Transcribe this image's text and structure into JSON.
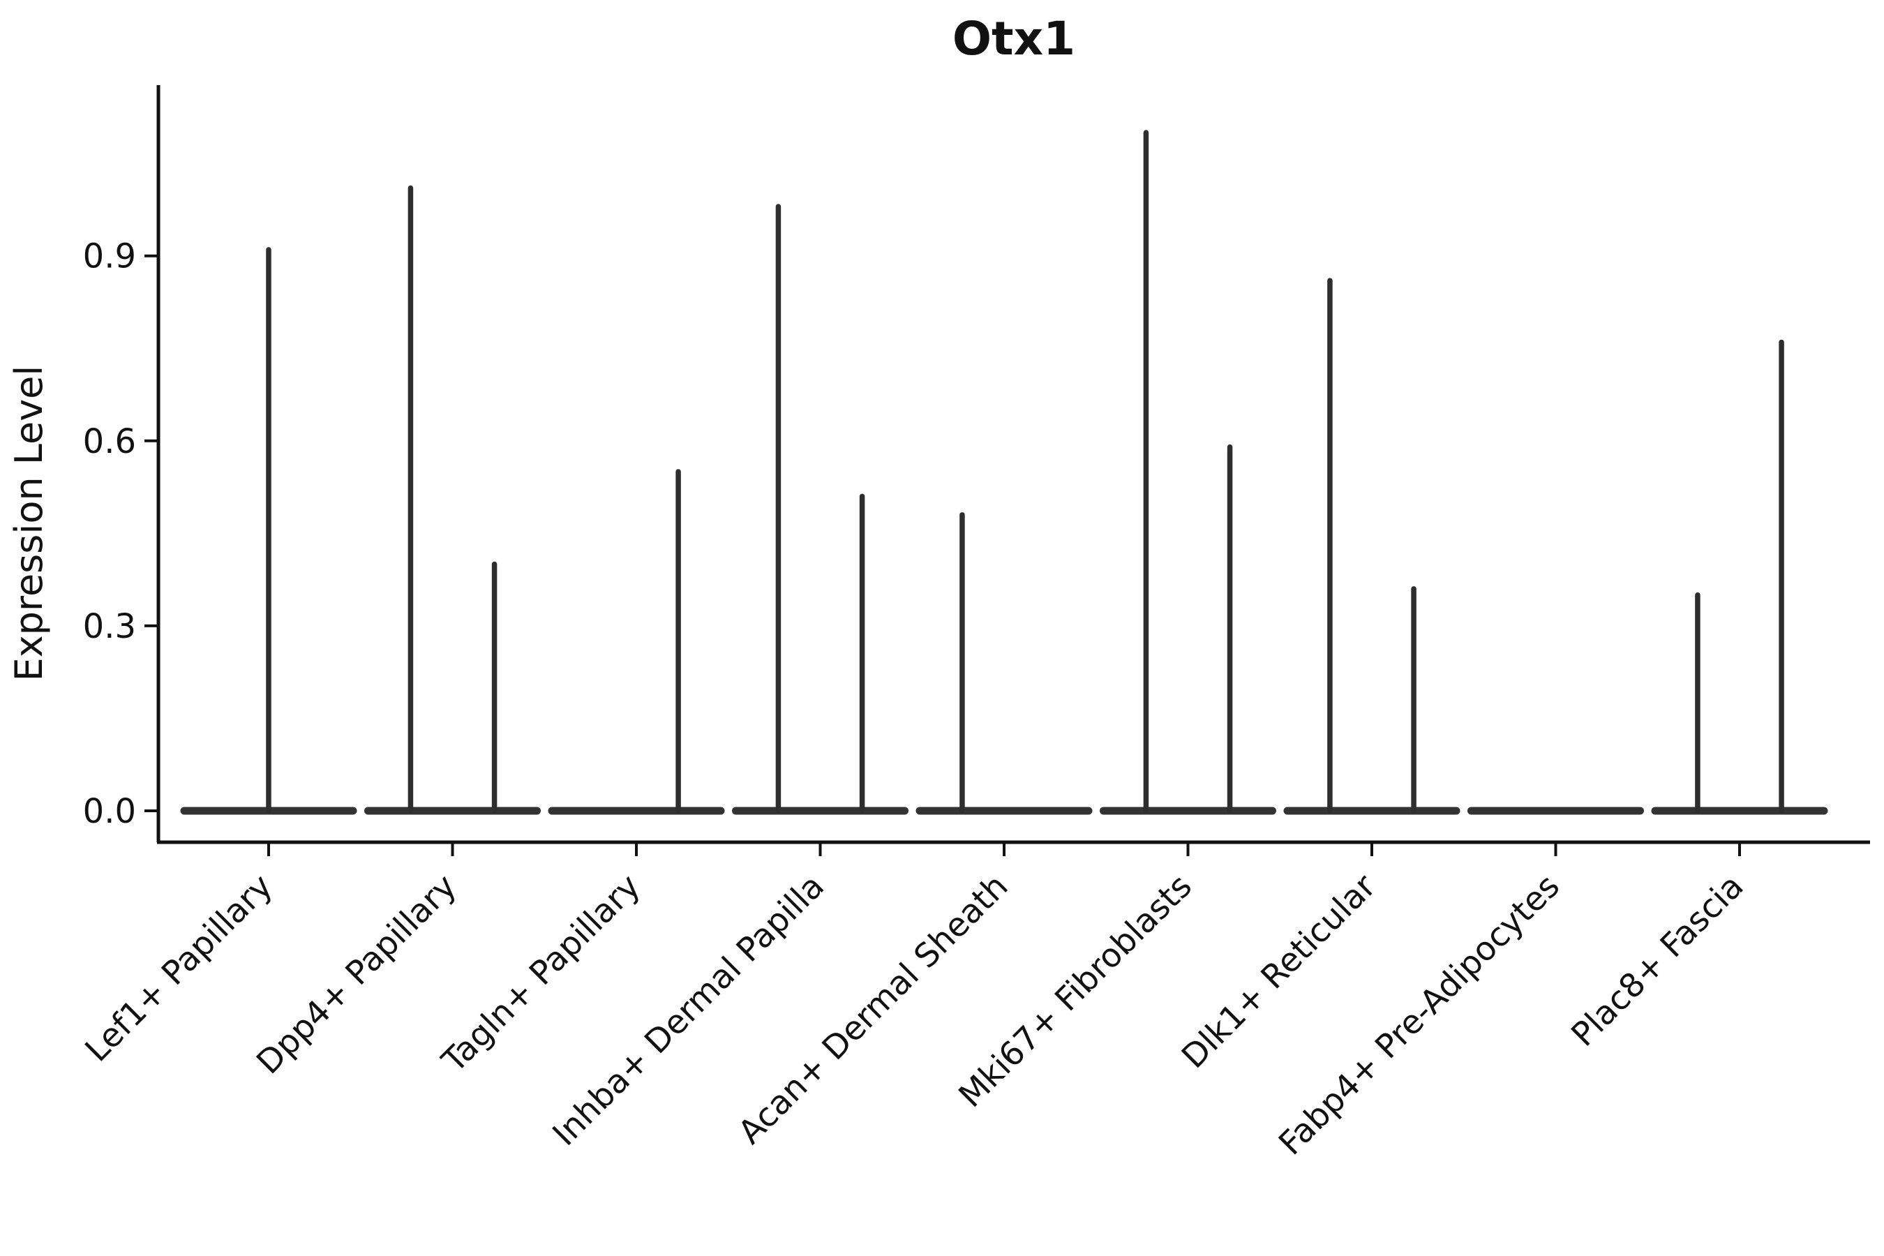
{
  "chart_data": {
    "type": "violin",
    "title": "Otx1",
    "ylabel": "Expression Level",
    "xlabel": "",
    "background": "#ffffff",
    "grid": false,
    "legend_position": "none",
    "ylim": [
      -0.051,
      1.177
    ],
    "ytick_values": [
      0.0,
      0.3,
      0.6,
      0.9
    ],
    "ytick_labels": [
      "0.0",
      "0.3",
      "0.6",
      "0.9"
    ],
    "categories": [
      "Lef1+ Papillary",
      "Dpp4+ Papillary",
      "Tagln+ Papillary",
      "Inhba+ Dermal Papilla",
      "Acan+ Dermal Sheath",
      "Mki67+ Fibroblasts",
      "Dlk1+ Reticular",
      "Fabp4+ Pre-Adipocytes",
      "Plac8+ Fascia"
    ],
    "violins": [
      {
        "category": "Lef1+ Papillary",
        "baseline_at_zero": true,
        "spikes": [
          {
            "offset": 0,
            "max": 0.91
          }
        ]
      },
      {
        "category": "Dpp4+ Papillary",
        "baseline_at_zero": true,
        "spikes": [
          {
            "offset": -0.228,
            "max": 1.01
          },
          {
            "offset": 0.228,
            "max": 0.4
          }
        ]
      },
      {
        "category": "Tagln+ Papillary",
        "baseline_at_zero": true,
        "spikes": [
          {
            "offset": 0.228,
            "max": 0.55
          }
        ]
      },
      {
        "category": "Inhba+ Dermal Papilla",
        "baseline_at_zero": true,
        "spikes": [
          {
            "offset": -0.228,
            "max": 0.98
          },
          {
            "offset": 0.228,
            "max": 0.51
          }
        ]
      },
      {
        "category": "Acan+ Dermal Sheath",
        "baseline_at_zero": true,
        "spikes": [
          {
            "offset": -0.228,
            "max": 0.48
          }
        ]
      },
      {
        "category": "Mki67+ Fibroblasts",
        "baseline_at_zero": true,
        "spikes": [
          {
            "offset": -0.228,
            "max": 1.1
          },
          {
            "offset": 0.228,
            "max": 0.59
          }
        ]
      },
      {
        "category": "Dlk1+ Reticular",
        "baseline_at_zero": true,
        "spikes": [
          {
            "offset": -0.228,
            "max": 0.86
          },
          {
            "offset": 0.228,
            "max": 0.36
          }
        ]
      },
      {
        "category": "Fabp4+ Pre-Adipocytes",
        "baseline_at_zero": true,
        "spikes": []
      },
      {
        "category": "Plac8+ Fascia",
        "baseline_at_zero": true,
        "spikes": [
          {
            "offset": -0.228,
            "max": 0.35
          },
          {
            "offset": 0.228,
            "max": 0.76
          }
        ]
      }
    ],
    "colors": {
      "violin_line": "#2e2e2e",
      "violin_base": "#333333",
      "axis": "#111111",
      "text": "#000000",
      "background": "#ffffff"
    }
  }
}
